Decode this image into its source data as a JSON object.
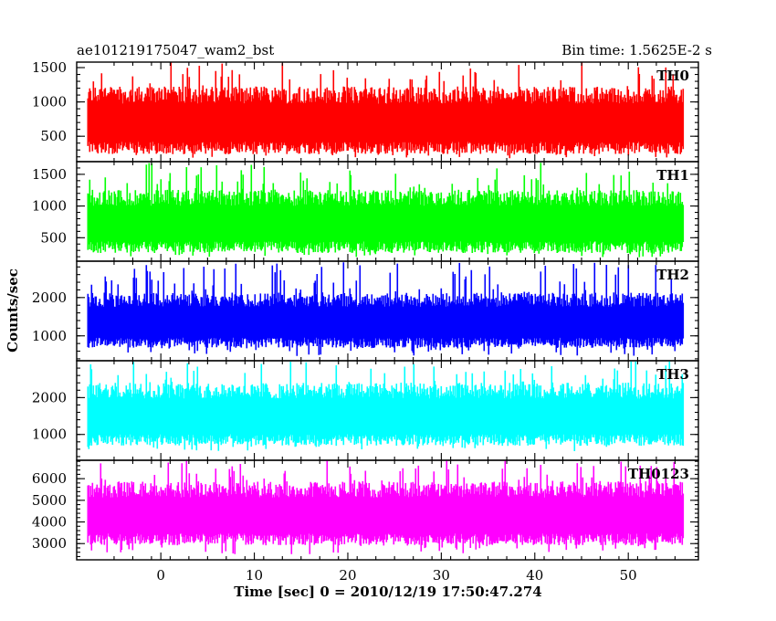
{
  "chart_data": {
    "type": "line",
    "title_left": "ae101219175047_wam2_bst",
    "title_right": "Bin time: 1.5625E-2 s",
    "xlabel": "Time [sec] 0 = 2010/12/19 17:50:47.274",
    "ylabel": "Counts/sec",
    "xlim": [
      -9,
      57.5
    ],
    "x_range": [
      -7.8,
      55.9
    ],
    "bin_time": 0.015625,
    "x_ticks": [
      0,
      10,
      20,
      30,
      40,
      50
    ],
    "grid": false,
    "panels": [
      {
        "label": "TH0",
        "color": "#ff0000",
        "ylim": [
          130,
          1580
        ],
        "y_ticks": [
          500,
          1000,
          1500
        ],
        "typical_min": 330,
        "typical_max": 1050,
        "low": 180,
        "high": 1580
      },
      {
        "label": "TH1",
        "color": "#00ff00",
        "ylim": [
          130,
          1700
        ],
        "y_ticks": [
          500,
          1000,
          1500
        ],
        "typical_min": 350,
        "typical_max": 1080,
        "low": 190,
        "high": 1700
      },
      {
        "label": "TH2",
        "color": "#0000ff",
        "ylim": [
          350,
          2950
        ],
        "y_ticks": [
          1000,
          2000
        ],
        "typical_min": 820,
        "typical_max": 1870,
        "low": 470,
        "high": 2950
      },
      {
        "label": "TH3",
        "color": "#00ffff",
        "ylim": [
          300,
          3000
        ],
        "y_ticks": [
          1000,
          2000
        ],
        "typical_min": 850,
        "typical_max": 2100,
        "low": 540,
        "high": 3000
      },
      {
        "label": "TH0123",
        "color": "#ff00ff",
        "ylim": [
          2250,
          6850
        ],
        "y_ticks": [
          3000,
          4000,
          5000,
          6000
        ],
        "typical_min": 3200,
        "typical_max": 5350,
        "low": 2500,
        "high": 6850
      }
    ]
  }
}
